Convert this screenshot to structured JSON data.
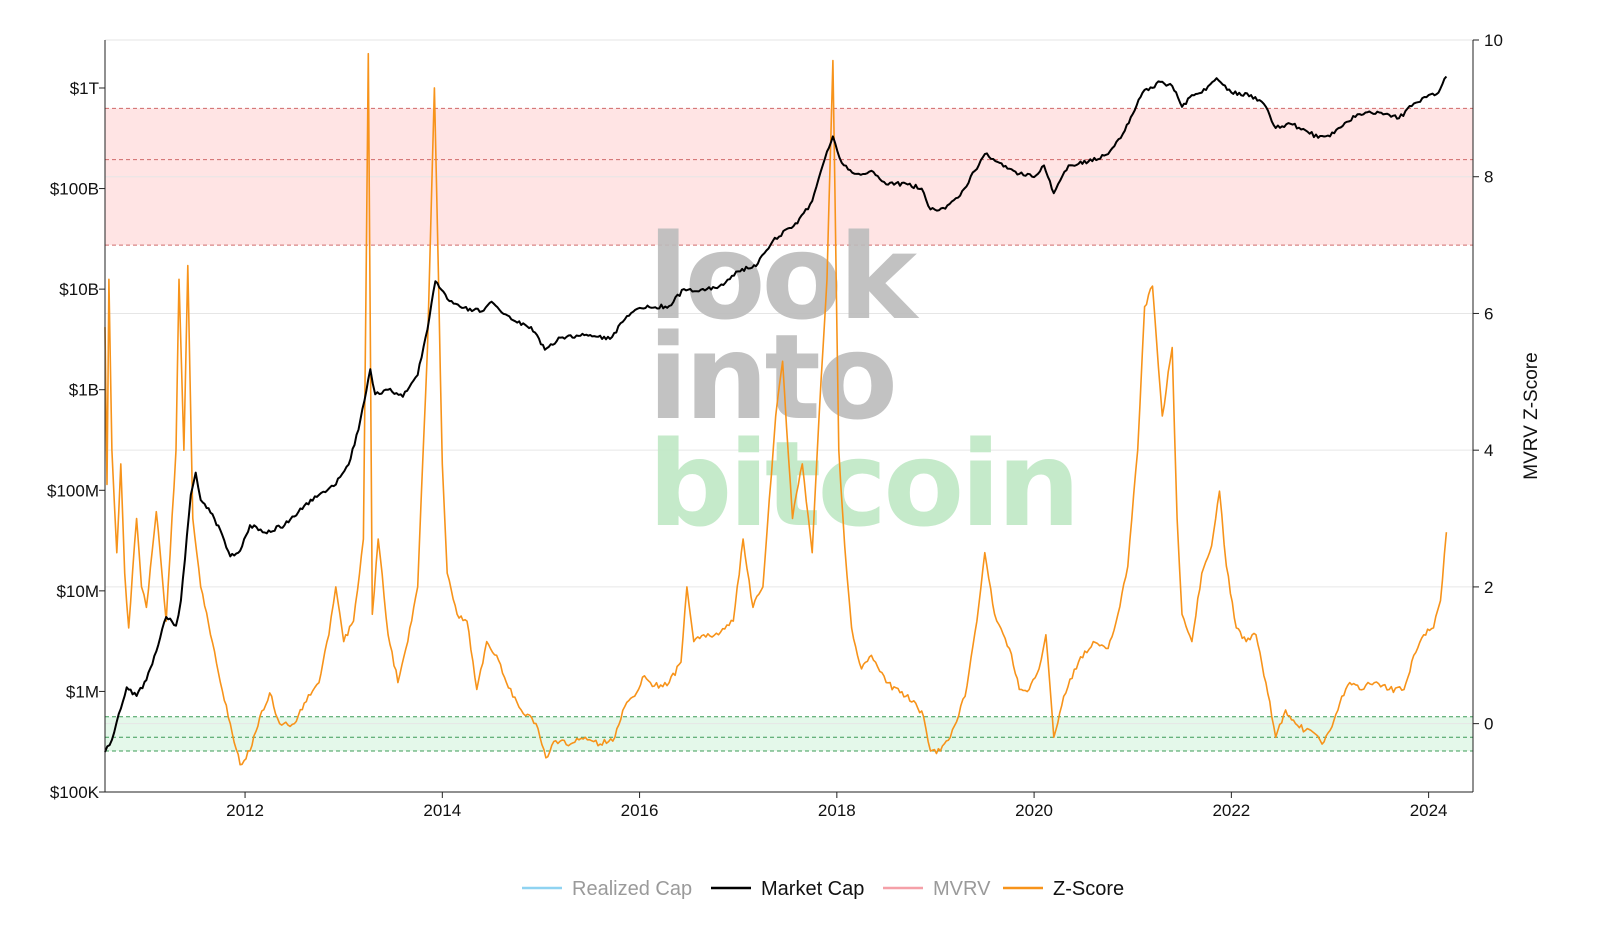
{
  "chart_data": {
    "type": "line",
    "title": "",
    "watermark": {
      "lines": [
        "look",
        "into",
        "bitcoin"
      ],
      "colors": [
        "#bbbbbb",
        "#bbbbbb",
        "#bfe8c4"
      ]
    },
    "x_ticks": [
      "2012",
      "2014",
      "2016",
      "2018",
      "2020",
      "2022",
      "2024"
    ],
    "x_range": [
      2010.58,
      2024.45
    ],
    "y_left": {
      "scale": "log",
      "range": [
        100000,
        3000000000000
      ],
      "ticks": [
        {
          "value": 100000,
          "label": "$100K"
        },
        {
          "value": 1000000,
          "label": "$1M"
        },
        {
          "value": 10000000,
          "label": "$10M"
        },
        {
          "value": 100000000,
          "label": "$100M"
        },
        {
          "value": 1000000000,
          "label": "$1B"
        },
        {
          "value": 10000000000,
          "label": "$10B"
        },
        {
          "value": 100000000000,
          "label": "$100B"
        },
        {
          "value": 1000000000000,
          "label": "$1T"
        }
      ]
    },
    "y_right": {
      "title": "MVRV Z-Score",
      "range": [
        -1,
        10
      ],
      "ticks": [
        0,
        2,
        4,
        6,
        8,
        10
      ]
    },
    "bands": [
      {
        "name": "top",
        "from": 7,
        "to": 9,
        "lines": [
          7,
          8.25,
          9
        ],
        "color": "#ffe4e4",
        "line_color": "#d06a6a"
      },
      {
        "name": "bottom",
        "from": -0.4,
        "to": 0.1,
        "lines": [
          -0.4,
          -0.2,
          0.1
        ],
        "color": "#e4f8ea",
        "line_color": "#3d9b57"
      }
    ],
    "legend": [
      {
        "label": "Realized Cap",
        "color": "#8fd3f1",
        "muted": true
      },
      {
        "label": "Market Cap",
        "color": "#000000",
        "muted": false
      },
      {
        "label": "MVRV",
        "color": "#f5a0a8",
        "muted": true
      },
      {
        "label": "Z-Score",
        "color": "#f7931a",
        "muted": false
      }
    ],
    "series": [
      {
        "name": "Market Cap",
        "axis": "left",
        "color": "#000000",
        "points": [
          [
            2010.58,
            250000
          ],
          [
            2010.65,
            330000
          ],
          [
            2010.72,
            600000
          ],
          [
            2010.8,
            1100000
          ],
          [
            2010.9,
            900000
          ],
          [
            2011.0,
            1300000
          ],
          [
            2011.1,
            2500000
          ],
          [
            2011.2,
            5500000
          ],
          [
            2011.3,
            4500000
          ],
          [
            2011.35,
            8000000
          ],
          [
            2011.45,
            90000000
          ],
          [
            2011.5,
            150000000
          ],
          [
            2011.55,
            80000000
          ],
          [
            2011.65,
            60000000
          ],
          [
            2011.75,
            40000000
          ],
          [
            2011.85,
            22000000
          ],
          [
            2011.95,
            25000000
          ],
          [
            2012.05,
            45000000
          ],
          [
            2012.2,
            38000000
          ],
          [
            2012.4,
            45000000
          ],
          [
            2012.6,
            70000000
          ],
          [
            2012.75,
            90000000
          ],
          [
            2012.9,
            110000000
          ],
          [
            2013.05,
            180000000
          ],
          [
            2013.15,
            400000000
          ],
          [
            2013.27,
            1600000000
          ],
          [
            2013.32,
            900000000
          ],
          [
            2013.45,
            1000000000
          ],
          [
            2013.6,
            850000000
          ],
          [
            2013.75,
            1400000000
          ],
          [
            2013.85,
            4000000000
          ],
          [
            2013.93,
            12000000000
          ],
          [
            2014.05,
            8000000000
          ],
          [
            2014.2,
            6500000000
          ],
          [
            2014.4,
            6000000000
          ],
          [
            2014.5,
            7500000000
          ],
          [
            2014.7,
            5000000000
          ],
          [
            2014.9,
            4200000000
          ],
          [
            2015.04,
            2500000000
          ],
          [
            2015.2,
            3300000000
          ],
          [
            2015.5,
            3500000000
          ],
          [
            2015.7,
            3200000000
          ],
          [
            2015.85,
            5000000000
          ],
          [
            2016.0,
            6500000000
          ],
          [
            2016.3,
            6800000000
          ],
          [
            2016.45,
            10000000000
          ],
          [
            2016.6,
            9500000000
          ],
          [
            2016.85,
            11000000000
          ],
          [
            2017.0,
            15000000000
          ],
          [
            2017.2,
            18000000000
          ],
          [
            2017.35,
            30000000000
          ],
          [
            2017.5,
            40000000000
          ],
          [
            2017.6,
            45000000000
          ],
          [
            2017.75,
            75000000000
          ],
          [
            2017.88,
            200000000000
          ],
          [
            2017.96,
            330000000000
          ],
          [
            2018.05,
            180000000000
          ],
          [
            2018.2,
            140000000000
          ],
          [
            2018.35,
            150000000000
          ],
          [
            2018.5,
            110000000000
          ],
          [
            2018.7,
            112000000000
          ],
          [
            2018.86,
            100000000000
          ],
          [
            2018.95,
            62000000000
          ],
          [
            2019.1,
            63000000000
          ],
          [
            2019.25,
            85000000000
          ],
          [
            2019.4,
            150000000000
          ],
          [
            2019.5,
            220000000000
          ],
          [
            2019.65,
            180000000000
          ],
          [
            2019.85,
            140000000000
          ],
          [
            2020.0,
            130000000000
          ],
          [
            2020.1,
            170000000000
          ],
          [
            2020.2,
            90000000000
          ],
          [
            2020.35,
            170000000000
          ],
          [
            2020.55,
            185000000000
          ],
          [
            2020.75,
            220000000000
          ],
          [
            2020.9,
            350000000000
          ],
          [
            2021.0,
            550000000000
          ],
          [
            2021.1,
            900000000000
          ],
          [
            2021.28,
            1150000000000
          ],
          [
            2021.4,
            1050000000000
          ],
          [
            2021.5,
            650000000000
          ],
          [
            2021.6,
            850000000000
          ],
          [
            2021.7,
            900000000000
          ],
          [
            2021.85,
            1250000000000
          ],
          [
            2022.0,
            900000000000
          ],
          [
            2022.2,
            850000000000
          ],
          [
            2022.35,
            650000000000
          ],
          [
            2022.45,
            400000000000
          ],
          [
            2022.6,
            440000000000
          ],
          [
            2022.75,
            380000000000
          ],
          [
            2022.88,
            320000000000
          ],
          [
            2023.0,
            330000000000
          ],
          [
            2023.15,
            450000000000
          ],
          [
            2023.3,
            550000000000
          ],
          [
            2023.5,
            570000000000
          ],
          [
            2023.7,
            500000000000
          ],
          [
            2023.85,
            700000000000
          ],
          [
            2024.0,
            850000000000
          ],
          [
            2024.1,
            900000000000
          ],
          [
            2024.18,
            1300000000000
          ]
        ]
      },
      {
        "name": "Z-Score",
        "axis": "right",
        "color": "#f7931a",
        "points": [
          [
            2010.58,
            5.8
          ],
          [
            2010.6,
            3.5
          ],
          [
            2010.62,
            6.5
          ],
          [
            2010.65,
            4.0
          ],
          [
            2010.7,
            2.5
          ],
          [
            2010.74,
            3.8
          ],
          [
            2010.78,
            2.2
          ],
          [
            2010.82,
            1.4
          ],
          [
            2010.9,
            3.0
          ],
          [
            2010.95,
            2.0
          ],
          [
            2011.0,
            1.7
          ],
          [
            2011.1,
            3.1
          ],
          [
            2011.2,
            1.5
          ],
          [
            2011.3,
            4.0
          ],
          [
            2011.33,
            6.5
          ],
          [
            2011.38,
            4.0
          ],
          [
            2011.42,
            6.7
          ],
          [
            2011.47,
            3.0
          ],
          [
            2011.55,
            2.0
          ],
          [
            2011.65,
            1.3
          ],
          [
            2011.75,
            0.6
          ],
          [
            2011.85,
            0.0
          ],
          [
            2011.95,
            -0.6
          ],
          [
            2012.05,
            -0.4
          ],
          [
            2012.15,
            0.1
          ],
          [
            2012.25,
            0.45
          ],
          [
            2012.35,
            0.0
          ],
          [
            2012.5,
            0.0
          ],
          [
            2012.6,
            0.3
          ],
          [
            2012.75,
            0.6
          ],
          [
            2012.85,
            1.3
          ],
          [
            2012.92,
            2.0
          ],
          [
            2013.0,
            1.2
          ],
          [
            2013.1,
            1.5
          ],
          [
            2013.2,
            2.7
          ],
          [
            2013.25,
            9.8
          ],
          [
            2013.29,
            1.6
          ],
          [
            2013.35,
            2.7
          ],
          [
            2013.45,
            1.3
          ],
          [
            2013.55,
            0.6
          ],
          [
            2013.65,
            1.2
          ],
          [
            2013.75,
            2.0
          ],
          [
            2013.85,
            5.5
          ],
          [
            2013.92,
            9.3
          ],
          [
            2014.0,
            3.8
          ],
          [
            2014.05,
            2.2
          ],
          [
            2014.15,
            1.6
          ],
          [
            2014.25,
            1.5
          ],
          [
            2014.35,
            0.5
          ],
          [
            2014.45,
            1.2
          ],
          [
            2014.55,
            1.0
          ],
          [
            2014.65,
            0.6
          ],
          [
            2014.8,
            0.2
          ],
          [
            2014.95,
            0.0
          ],
          [
            2015.05,
            -0.5
          ],
          [
            2015.15,
            -0.25
          ],
          [
            2015.3,
            -0.3
          ],
          [
            2015.45,
            -0.2
          ],
          [
            2015.6,
            -0.3
          ],
          [
            2015.75,
            -0.2
          ],
          [
            2015.85,
            0.25
          ],
          [
            2015.95,
            0.4
          ],
          [
            2016.05,
            0.7
          ],
          [
            2016.15,
            0.55
          ],
          [
            2016.3,
            0.6
          ],
          [
            2016.42,
            0.9
          ],
          [
            2016.48,
            2.0
          ],
          [
            2016.55,
            1.2
          ],
          [
            2016.65,
            1.3
          ],
          [
            2016.8,
            1.3
          ],
          [
            2016.95,
            1.5
          ],
          [
            2017.05,
            2.7
          ],
          [
            2017.15,
            1.7
          ],
          [
            2017.25,
            2.0
          ],
          [
            2017.38,
            4.5
          ],
          [
            2017.45,
            5.3
          ],
          [
            2017.55,
            3.0
          ],
          [
            2017.65,
            3.8
          ],
          [
            2017.75,
            2.5
          ],
          [
            2017.82,
            4.5
          ],
          [
            2017.9,
            6.5
          ],
          [
            2017.96,
            9.7
          ],
          [
            2018.02,
            4.0
          ],
          [
            2018.08,
            2.6
          ],
          [
            2018.15,
            1.4
          ],
          [
            2018.25,
            0.8
          ],
          [
            2018.35,
            1.0
          ],
          [
            2018.5,
            0.6
          ],
          [
            2018.7,
            0.4
          ],
          [
            2018.8,
            0.3
          ],
          [
            2018.88,
            0.1
          ],
          [
            2018.95,
            -0.4
          ],
          [
            2019.05,
            -0.4
          ],
          [
            2019.15,
            -0.2
          ],
          [
            2019.3,
            0.4
          ],
          [
            2019.42,
            1.5
          ],
          [
            2019.5,
            2.5
          ],
          [
            2019.6,
            1.6
          ],
          [
            2019.75,
            1.1
          ],
          [
            2019.85,
            0.5
          ],
          [
            2019.95,
            0.5
          ],
          [
            2020.05,
            0.8
          ],
          [
            2020.12,
            1.3
          ],
          [
            2020.2,
            -0.2
          ],
          [
            2020.3,
            0.4
          ],
          [
            2020.45,
            0.9
          ],
          [
            2020.6,
            1.2
          ],
          [
            2020.75,
            1.1
          ],
          [
            2020.85,
            1.6
          ],
          [
            2020.95,
            2.3
          ],
          [
            2021.05,
            4.0
          ],
          [
            2021.12,
            6.1
          ],
          [
            2021.2,
            6.4
          ],
          [
            2021.3,
            4.5
          ],
          [
            2021.4,
            5.5
          ],
          [
            2021.45,
            3.0
          ],
          [
            2021.5,
            1.6
          ],
          [
            2021.6,
            1.2
          ],
          [
            2021.7,
            2.2
          ],
          [
            2021.8,
            2.6
          ],
          [
            2021.88,
            3.4
          ],
          [
            2021.95,
            2.3
          ],
          [
            2022.05,
            1.4
          ],
          [
            2022.15,
            1.2
          ],
          [
            2022.25,
            1.3
          ],
          [
            2022.35,
            0.6
          ],
          [
            2022.45,
            -0.2
          ],
          [
            2022.55,
            0.2
          ],
          [
            2022.65,
            0.0
          ],
          [
            2022.75,
            -0.1
          ],
          [
            2022.85,
            -0.15
          ],
          [
            2022.92,
            -0.3
          ],
          [
            2023.0,
            -0.1
          ],
          [
            2023.1,
            0.3
          ],
          [
            2023.2,
            0.6
          ],
          [
            2023.3,
            0.5
          ],
          [
            2023.45,
            0.6
          ],
          [
            2023.6,
            0.5
          ],
          [
            2023.75,
            0.5
          ],
          [
            2023.85,
            1.0
          ],
          [
            2023.95,
            1.3
          ],
          [
            2024.05,
            1.4
          ],
          [
            2024.12,
            1.8
          ],
          [
            2024.18,
            2.8
          ]
        ]
      }
    ]
  }
}
